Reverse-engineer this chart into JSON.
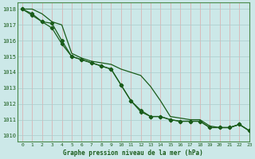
{
  "title": "Graphe pression niveau de la mer (hPa)",
  "background_color": "#cce8e8",
  "grid_color": "#aacccc",
  "line_color": "#1a5c1a",
  "spine_color": "#4a8a4a",
  "xlim": [
    -0.5,
    23
  ],
  "ylim": [
    1009.6,
    1018.4
  ],
  "yticks": [
    1010,
    1011,
    1012,
    1013,
    1014,
    1015,
    1016,
    1017,
    1018
  ],
  "xticks": [
    0,
    1,
    2,
    3,
    4,
    5,
    6,
    7,
    8,
    9,
    10,
    11,
    12,
    13,
    14,
    15,
    16,
    17,
    18,
    19,
    20,
    21,
    22,
    23
  ],
  "series1_x": [
    0,
    1,
    2,
    3,
    4,
    5,
    6,
    7,
    8,
    9,
    10,
    11,
    12,
    13,
    14,
    15,
    16,
    17,
    18,
    19,
    20,
    21,
    22,
    23
  ],
  "series1_y": [
    1018.0,
    1018.0,
    1017.7,
    1017.2,
    1017.0,
    1015.2,
    1014.9,
    1014.7,
    1014.6,
    1014.5,
    1014.2,
    1014.0,
    1013.8,
    1013.1,
    1012.2,
    1011.2,
    1011.1,
    1011.0,
    1011.0,
    1010.6,
    1010.5,
    1010.5,
    1010.7,
    1010.3
  ],
  "series2_x": [
    0,
    1,
    2,
    3,
    4,
    5,
    6,
    7,
    8,
    9,
    10,
    11,
    12,
    13,
    14,
    15,
    16,
    17,
    18,
    19,
    20,
    21,
    22,
    23
  ],
  "series2_y": [
    1018.0,
    1017.7,
    1017.2,
    1017.1,
    1016.0,
    1015.0,
    1014.8,
    1014.6,
    1014.4,
    1014.2,
    1013.2,
    1012.2,
    1011.6,
    1011.2,
    1011.2,
    1011.0,
    1010.9,
    1010.9,
    1010.9,
    1010.5,
    1010.5,
    1010.5,
    1010.7,
    1010.3
  ],
  "series3_x": [
    0,
    1,
    2,
    3,
    4,
    5,
    6,
    7,
    8,
    9,
    10,
    11,
    12,
    13,
    14,
    15,
    16,
    17,
    18,
    19,
    20,
    21,
    22,
    23
  ],
  "series3_y": [
    1018.0,
    1017.6,
    1017.2,
    1016.8,
    1015.8,
    1015.0,
    1014.8,
    1014.6,
    1014.4,
    1014.2,
    1013.2,
    1012.2,
    1011.5,
    1011.2,
    1011.2,
    1011.0,
    1010.9,
    1010.9,
    1010.9,
    1010.5,
    1010.5,
    1010.5,
    1010.7,
    1010.3
  ]
}
